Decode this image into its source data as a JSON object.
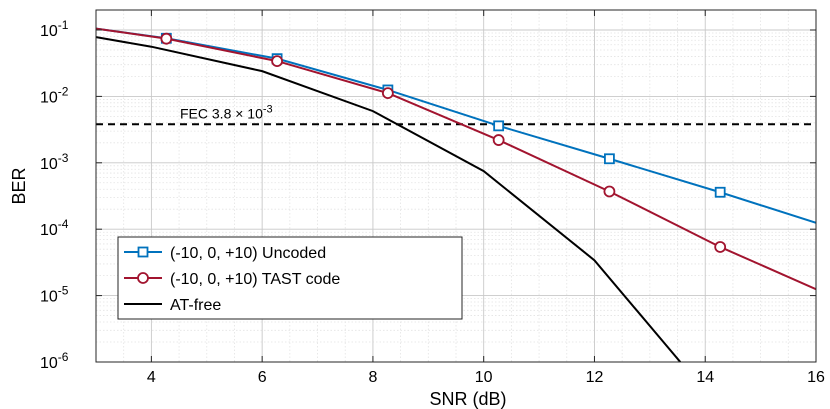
{
  "chart_data": {
    "type": "line",
    "xlabel": "SNR (dB)",
    "ylabel": "BER",
    "xlim": [
      3,
      16
    ],
    "ylim": [
      1e-06,
      0.2
    ],
    "yscale": "log",
    "grid": true,
    "x_ticks": [
      4,
      6,
      8,
      10,
      12,
      14,
      16
    ],
    "y_ticks": [
      {
        "base": "10",
        "exp": "-1",
        "value": 0.1
      },
      {
        "base": "10",
        "exp": "-2",
        "value": 0.01
      },
      {
        "base": "10",
        "exp": "-3",
        "value": 0.001
      },
      {
        "base": "10",
        "exp": "-4",
        "value": 0.0001
      },
      {
        "base": "10",
        "exp": "-5",
        "value": 1e-05
      },
      {
        "base": "10",
        "exp": "-6",
        "value": 1e-06
      }
    ],
    "legend_position": "bottom-left",
    "series": [
      {
        "name": "(-10, 0, +10) Uncoded",
        "color": "#0072BD",
        "marker": "square",
        "x": [
          3,
          4.27,
          6.27,
          8.27,
          10.27,
          12.27,
          14.27,
          16
        ],
        "y": [
          0.105,
          0.075,
          0.037,
          0.0125,
          0.0036,
          0.00115,
          0.00036,
          0.000125
        ]
      },
      {
        "name": "(-10, 0, +10)  TAST code",
        "color": "#A2142F",
        "marker": "circle",
        "x": [
          3,
          4.27,
          6.27,
          8.27,
          10.27,
          12.27,
          14.27,
          16
        ],
        "y": [
          0.105,
          0.074,
          0.034,
          0.0112,
          0.0022,
          0.00037,
          5.4e-05,
          1.25e-05
        ]
      },
      {
        "name": "AT-free",
        "color": "#000000",
        "marker": "none",
        "x": [
          3,
          4,
          6,
          8,
          10,
          12,
          13.55
        ],
        "y": [
          0.078,
          0.056,
          0.024,
          0.006,
          0.00075,
          3.4e-05,
          1e-06
        ]
      }
    ],
    "reference_line": {
      "y": 0.0038,
      "style": "dashed",
      "label_prefix": "FEC  3.8",
      "label_times": "×",
      "label_base": "10",
      "label_exp": "-3"
    }
  }
}
